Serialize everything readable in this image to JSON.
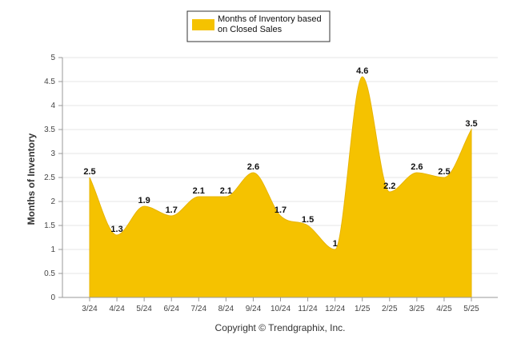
{
  "chart_data": {
    "type": "area",
    "categories": [
      "3/24",
      "4/24",
      "5/24",
      "6/24",
      "7/24",
      "8/24",
      "9/24",
      "10/24",
      "11/24",
      "12/24",
      "1/25",
      "2/25",
      "3/25",
      "4/25",
      "5/25"
    ],
    "series": [
      {
        "name": "Months of Inventory based on Closed Sales",
        "values": [
          2.5,
          1.3,
          1.9,
          1.7,
          2.1,
          2.1,
          2.6,
          1.7,
          1.5,
          1,
          4.6,
          2.2,
          2.6,
          2.5,
          3.5
        ],
        "color": "#F5C200"
      }
    ],
    "data_labels": [
      "2.5",
      "1.3",
      "1.9",
      "1.7",
      "2.1",
      "2.1",
      "2.6",
      "1.7",
      "1.5",
      "1",
      "4.6",
      "2.2",
      "2.6",
      "2.5",
      "3.5"
    ],
    "ylabel": "Months of Inventory",
    "xlabel": "",
    "ylim": [
      0,
      5
    ],
    "yticks": [
      "0",
      "0.5",
      "1",
      "1.5",
      "2",
      "2.5",
      "3",
      "3.5",
      "4",
      "4.5",
      "5"
    ],
    "grid": true,
    "legend_placement": "top-center"
  },
  "legend": {
    "line1": "Months of Inventory based",
    "line2": "on Closed Sales"
  },
  "footer": {
    "copyright": "Copyright © Trendgraphix, Inc."
  }
}
